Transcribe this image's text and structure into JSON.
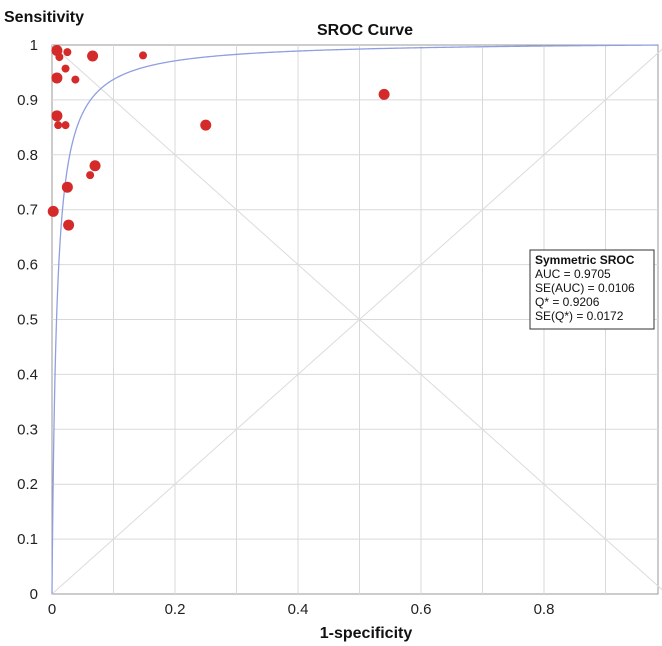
{
  "chart_data": {
    "type": "scatter",
    "title": "SROC Curve",
    "xlabel": "1-specificity",
    "ylabel": "Sensitivity",
    "xlim": [
      0,
      1
    ],
    "ylim": [
      0,
      1
    ],
    "x_ticks": [
      "0",
      "0.2",
      "0.4",
      "0.6",
      "0.8"
    ],
    "x_tick_values": [
      0,
      0.2,
      0.4,
      0.6,
      0.8
    ],
    "y_ticks": [
      "0",
      "0.1",
      "0.2",
      "0.3",
      "0.4",
      "0.5",
      "0.6",
      "0.7",
      "0.8",
      "0.9",
      "1"
    ],
    "y_tick_values": [
      0,
      0.1,
      0.2,
      0.3,
      0.4,
      0.5,
      0.6,
      0.7,
      0.8,
      0.9,
      1.0
    ],
    "grid": true,
    "legend_position": "right",
    "studies": [
      {
        "x": 0.008,
        "y": 0.99,
        "weight": "large"
      },
      {
        "x": 0.012,
        "y": 0.978,
        "weight": "small"
      },
      {
        "x": 0.025,
        "y": 0.987,
        "weight": "small"
      },
      {
        "x": 0.066,
        "y": 0.98,
        "weight": "large"
      },
      {
        "x": 0.148,
        "y": 0.981,
        "weight": "small"
      },
      {
        "x": 0.022,
        "y": 0.957,
        "weight": "small"
      },
      {
        "x": 0.008,
        "y": 0.94,
        "weight": "large"
      },
      {
        "x": 0.038,
        "y": 0.937,
        "weight": "small"
      },
      {
        "x": 0.008,
        "y": 0.871,
        "weight": "large"
      },
      {
        "x": 0.01,
        "y": 0.854,
        "weight": "small"
      },
      {
        "x": 0.022,
        "y": 0.854,
        "weight": "small"
      },
      {
        "x": 0.25,
        "y": 0.854,
        "weight": "large"
      },
      {
        "x": 0.54,
        "y": 0.91,
        "weight": "large"
      },
      {
        "x": 0.07,
        "y": 0.78,
        "weight": "large"
      },
      {
        "x": 0.062,
        "y": 0.763,
        "weight": "small"
      },
      {
        "x": 0.025,
        "y": 0.741,
        "weight": "large"
      },
      {
        "x": 0.002,
        "y": 0.697,
        "weight": "large"
      },
      {
        "x": 0.027,
        "y": 0.672,
        "weight": "large"
      }
    ],
    "sroc_curve": {
      "model": "symmetric",
      "auc": 0.9705,
      "q_star": 0.9206
    },
    "marker_color": "#d42a2a",
    "curve_color": "#8f9fe0",
    "legend": {
      "title": "Symmetric SROC",
      "lines": [
        "AUC = 0.9705",
        "SE(AUC) = 0.0106",
        "Q* = 0.9206",
        "SE(Q*) = 0.0172"
      ]
    }
  }
}
